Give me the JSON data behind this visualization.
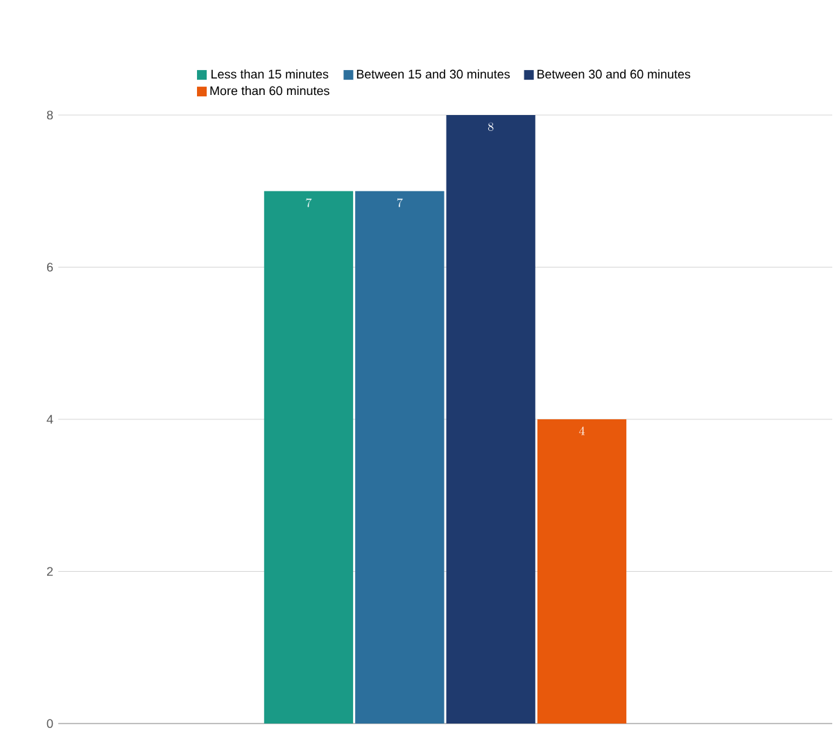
{
  "chart_data": {
    "type": "bar",
    "categories": [
      null
    ],
    "series": [
      {
        "name": "Less than 15 minutes",
        "color": "#1a9a86",
        "values": [
          7
        ]
      },
      {
        "name": "Between 15 and 30 minutes",
        "color": "#2c6f9c",
        "values": [
          7
        ]
      },
      {
        "name": "Between 30 and 60 minutes",
        "color": "#1f3a6e",
        "values": [
          8
        ]
      },
      {
        "name": "More than 60 minutes",
        "color": "#e8590c",
        "values": [
          4
        ]
      }
    ],
    "ylim": [
      0,
      8
    ],
    "yticks": [
      0,
      2,
      4,
      6,
      8
    ],
    "grid": "y",
    "legend": "top",
    "data_labels": true
  }
}
